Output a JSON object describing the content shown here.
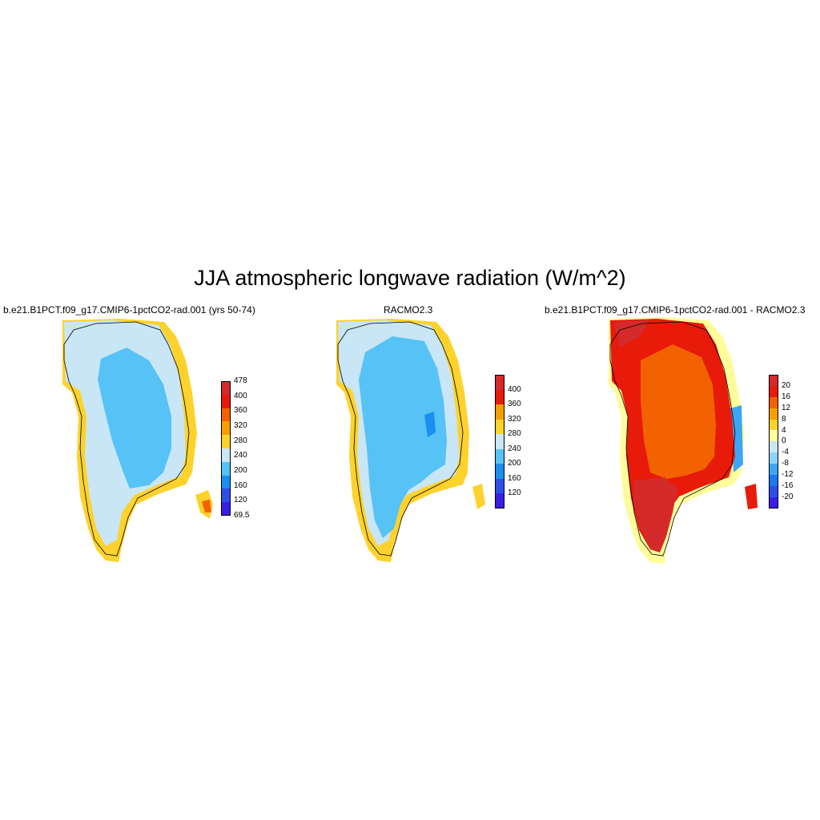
{
  "title": "JJA atmospheric longwave radiation (W/m^2)",
  "panels": [
    {
      "title": "b.e21.B1PCT.f09_g17.CMIP6-1pctCO2-rad.001 (yrs 50-74)",
      "colorbar": {
        "colors": [
          "#3a1ee6",
          "#2d4fe8",
          "#1c8ef0",
          "#56c2f5",
          "#c8e6f5",
          "#fdd22c",
          "#f5a000",
          "#f26200",
          "#e81a0a",
          "#d42a2a"
        ],
        "labels": [
          "69.5",
          "120",
          "160",
          "200",
          "240",
          "280",
          "320",
          "360",
          "400",
          "478"
        ]
      },
      "map_colors": [
        "#fdd22c",
        "#c8e6f5",
        "#56c2f5"
      ]
    },
    {
      "title": "RACMO2.3",
      "colorbar": {
        "colors": [
          "#3a1ee6",
          "#2d4fe8",
          "#1c8ef0",
          "#56c2f5",
          "#c8e6f5",
          "#fdd22c",
          "#f5a000",
          "#e81a0a",
          "#d42a2a"
        ],
        "labels": [
          "120",
          "160",
          "200",
          "240",
          "280",
          "320",
          "360",
          "400"
        ]
      },
      "map_colors": [
        "#fdd22c",
        "#c8e6f5",
        "#56c2f5"
      ]
    },
    {
      "title": "b.e21.B1PCT.f09_g17.CMIP6-1pctCO2-rad.001 - RACMO2.3",
      "colorbar": {
        "colors": [
          "#3a1ee6",
          "#2d4fe8",
          "#1c78f0",
          "#3ca5f5",
          "#8fd2f8",
          "#c8e6f5",
          "#fffc9a",
          "#fdd22c",
          "#f5a000",
          "#f26200",
          "#e81a0a",
          "#d42a2a"
        ],
        "labels": [
          "-20",
          "-16",
          "-12",
          "-8",
          "-4",
          "0",
          "4",
          "8",
          "12",
          "16",
          "20"
        ]
      },
      "map_colors": [
        "#e81a0a",
        "#f26200",
        "#d42a2a"
      ]
    }
  ]
}
